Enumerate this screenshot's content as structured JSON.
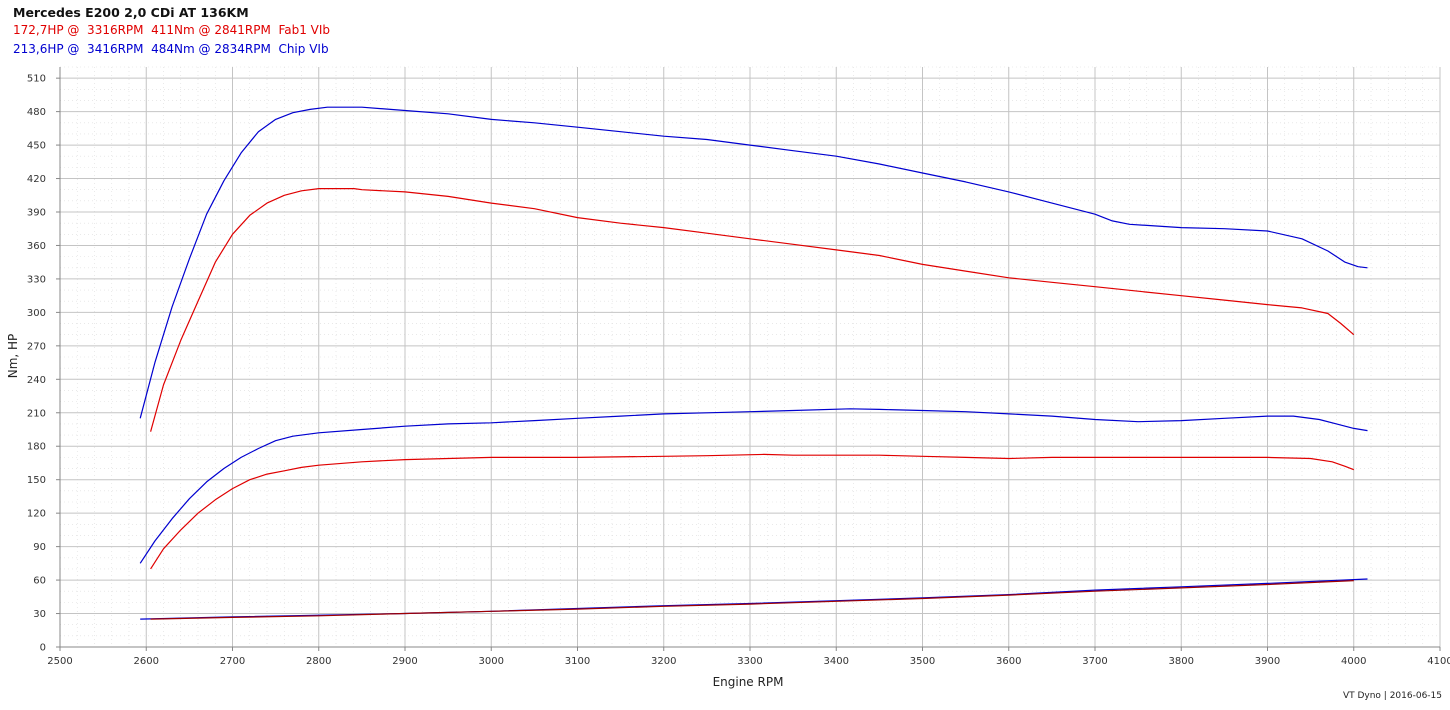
{
  "header": {
    "title": "Mercedes E200 2,0 CDi AT 136KM",
    "legend": [
      {
        "text": "172,7HP @  3316RPM  411Nm @ 2841RPM  Fab1 VIb",
        "color": "#e00000"
      },
      {
        "text": "213,6HP @  3416RPM  484Nm @ 2834RPM  Chip VIb",
        "color": "#0000d0"
      }
    ]
  },
  "footer": {
    "text": "VT Dyno | 2016-06-15"
  },
  "chart_data": {
    "type": "line",
    "xlabel": "Engine RPM",
    "ylabel": "Nm, HP",
    "xlim": [
      2500,
      4100
    ],
    "ylim": [
      0,
      520
    ],
    "xticks": [
      2500,
      2600,
      2700,
      2800,
      2900,
      3000,
      3100,
      3200,
      3300,
      3400,
      3500,
      3600,
      3700,
      3800,
      3900,
      4000,
      4100
    ],
    "yticks": [
      0,
      30,
      60,
      90,
      120,
      150,
      180,
      210,
      240,
      270,
      300,
      330,
      360,
      390,
      420,
      450,
      480,
      510
    ],
    "grid": true,
    "series": [
      {
        "id": "chip-torque",
        "color": "#0000d0",
        "points": [
          [
            2593,
            205
          ],
          [
            2610,
            255
          ],
          [
            2630,
            305
          ],
          [
            2650,
            348
          ],
          [
            2670,
            388
          ],
          [
            2690,
            418
          ],
          [
            2710,
            443
          ],
          [
            2730,
            462
          ],
          [
            2750,
            473
          ],
          [
            2770,
            479
          ],
          [
            2790,
            482
          ],
          [
            2810,
            484
          ],
          [
            2834,
            484
          ],
          [
            2850,
            484
          ],
          [
            2900,
            481
          ],
          [
            2950,
            478
          ],
          [
            3000,
            473
          ],
          [
            3050,
            470
          ],
          [
            3100,
            466
          ],
          [
            3150,
            462
          ],
          [
            3200,
            458
          ],
          [
            3250,
            455
          ],
          [
            3300,
            450
          ],
          [
            3350,
            445
          ],
          [
            3400,
            440
          ],
          [
            3450,
            433
          ],
          [
            3500,
            425
          ],
          [
            3550,
            417
          ],
          [
            3600,
            408
          ],
          [
            3650,
            398
          ],
          [
            3700,
            388
          ],
          [
            3720,
            382
          ],
          [
            3740,
            379
          ],
          [
            3800,
            376
          ],
          [
            3850,
            375
          ],
          [
            3900,
            373
          ],
          [
            3940,
            366
          ],
          [
            3970,
            355
          ],
          [
            3990,
            345
          ],
          [
            4005,
            341
          ],
          [
            4016,
            340
          ]
        ]
      },
      {
        "id": "stock-torque",
        "color": "#e00000",
        "points": [
          [
            2605,
            193
          ],
          [
            2620,
            235
          ],
          [
            2640,
            275
          ],
          [
            2660,
            310
          ],
          [
            2680,
            345
          ],
          [
            2700,
            370
          ],
          [
            2720,
            387
          ],
          [
            2740,
            398
          ],
          [
            2760,
            405
          ],
          [
            2780,
            409
          ],
          [
            2800,
            411
          ],
          [
            2841,
            411
          ],
          [
            2850,
            410
          ],
          [
            2900,
            408
          ],
          [
            2950,
            404
          ],
          [
            3000,
            398
          ],
          [
            3050,
            393
          ],
          [
            3100,
            385
          ],
          [
            3150,
            380
          ],
          [
            3200,
            376
          ],
          [
            3250,
            371
          ],
          [
            3300,
            366
          ],
          [
            3350,
            361
          ],
          [
            3400,
            356
          ],
          [
            3450,
            351
          ],
          [
            3500,
            343
          ],
          [
            3550,
            337
          ],
          [
            3600,
            331
          ],
          [
            3650,
            327
          ],
          [
            3700,
            323
          ],
          [
            3750,
            319
          ],
          [
            3800,
            315
          ],
          [
            3850,
            311
          ],
          [
            3900,
            307
          ],
          [
            3940,
            304
          ],
          [
            3970,
            299
          ],
          [
            3985,
            290
          ],
          [
            4000,
            280
          ]
        ]
      },
      {
        "id": "chip-power",
        "color": "#0000d0",
        "points": [
          [
            2593,
            75
          ],
          [
            2610,
            95
          ],
          [
            2630,
            115
          ],
          [
            2650,
            133
          ],
          [
            2670,
            148
          ],
          [
            2690,
            160
          ],
          [
            2710,
            170
          ],
          [
            2730,
            178
          ],
          [
            2750,
            185
          ],
          [
            2770,
            189
          ],
          [
            2800,
            192
          ],
          [
            2850,
            195
          ],
          [
            2900,
            198
          ],
          [
            2950,
            200
          ],
          [
            3000,
            201
          ],
          [
            3050,
            203
          ],
          [
            3100,
            205
          ],
          [
            3150,
            207
          ],
          [
            3200,
            209
          ],
          [
            3250,
            210
          ],
          [
            3300,
            211
          ],
          [
            3350,
            212
          ],
          [
            3416,
            213.6
          ],
          [
            3450,
            213
          ],
          [
            3500,
            212
          ],
          [
            3550,
            211
          ],
          [
            3600,
            209
          ],
          [
            3650,
            207
          ],
          [
            3700,
            204
          ],
          [
            3750,
            202
          ],
          [
            3800,
            203
          ],
          [
            3850,
            205
          ],
          [
            3900,
            207
          ],
          [
            3930,
            207
          ],
          [
            3960,
            204
          ],
          [
            3980,
            200
          ],
          [
            4000,
            196
          ],
          [
            4016,
            194
          ]
        ]
      },
      {
        "id": "stock-power",
        "color": "#e00000",
        "points": [
          [
            2605,
            70
          ],
          [
            2620,
            88
          ],
          [
            2640,
            105
          ],
          [
            2660,
            120
          ],
          [
            2680,
            132
          ],
          [
            2700,
            142
          ],
          [
            2720,
            150
          ],
          [
            2740,
            155
          ],
          [
            2760,
            158
          ],
          [
            2780,
            161
          ],
          [
            2800,
            163
          ],
          [
            2850,
            166
          ],
          [
            2900,
            168
          ],
          [
            2950,
            169
          ],
          [
            3000,
            170
          ],
          [
            3100,
            170
          ],
          [
            3200,
            171
          ],
          [
            3250,
            171.5
          ],
          [
            3316,
            172.7
          ],
          [
            3350,
            172
          ],
          [
            3400,
            172
          ],
          [
            3450,
            172
          ],
          [
            3500,
            171
          ],
          [
            3550,
            170
          ],
          [
            3600,
            169
          ],
          [
            3650,
            170
          ],
          [
            3700,
            170
          ],
          [
            3750,
            170
          ],
          [
            3800,
            170
          ],
          [
            3850,
            170
          ],
          [
            3900,
            170
          ],
          [
            3950,
            169
          ],
          [
            3975,
            166
          ],
          [
            3990,
            162
          ],
          [
            4000,
            159
          ]
        ]
      },
      {
        "id": "chip-loss",
        "color": "#0000d0",
        "points": [
          [
            2593,
            25
          ],
          [
            2700,
            27
          ],
          [
            2800,
            28.5
          ],
          [
            2900,
            30
          ],
          [
            3000,
            32
          ],
          [
            3100,
            34.5
          ],
          [
            3200,
            37
          ],
          [
            3300,
            39
          ],
          [
            3400,
            41.5
          ],
          [
            3500,
            44
          ],
          [
            3600,
            47
          ],
          [
            3700,
            51
          ],
          [
            3800,
            54
          ],
          [
            3900,
            57
          ],
          [
            4016,
            61
          ]
        ]
      },
      {
        "id": "stock-loss",
        "color": "#a00000",
        "points": [
          [
            2605,
            25
          ],
          [
            2700,
            26.5
          ],
          [
            2800,
            28
          ],
          [
            2900,
            30
          ],
          [
            3000,
            32
          ],
          [
            3100,
            34
          ],
          [
            3200,
            36.5
          ],
          [
            3300,
            38.5
          ],
          [
            3400,
            41
          ],
          [
            3500,
            43.5
          ],
          [
            3600,
            46.5
          ],
          [
            3700,
            50
          ],
          [
            3800,
            53
          ],
          [
            3900,
            56
          ],
          [
            4000,
            59.5
          ]
        ]
      }
    ]
  }
}
